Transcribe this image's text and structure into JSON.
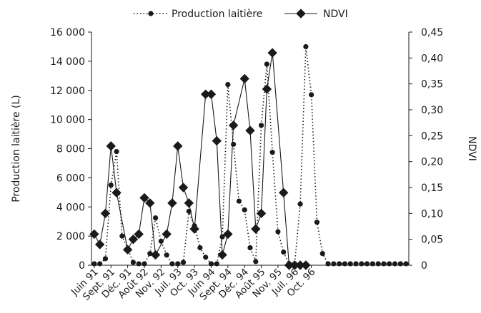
{
  "chart_data": {
    "type": "line",
    "xlabel": "",
    "ylabel": "Production laitière (L)",
    "y2label": "NDVI",
    "ylim": [
      0,
      16000
    ],
    "y2lim": [
      0,
      0.45
    ],
    "grid": false,
    "legend_position": "top",
    "x_tick_labels": [
      "Juin 91",
      "Sept. 91",
      "Déc. 91",
      "Août 92",
      "Nov. 92",
      "Juil. 93",
      "Oct. 93",
      "Juin 94",
      "Sept. 94",
      "Déc. 94",
      "Août 95",
      "Nov. 95",
      "Juil. 96",
      "Oct. 96"
    ],
    "y_tick_labels": [
      "0",
      "2 000",
      "4 000",
      "6 000",
      "8 000",
      "10 000",
      "12 000",
      "14 000",
      "16 000"
    ],
    "y2_tick_labels": [
      "0",
      "0,05",
      "0,10",
      "0,15",
      "0,20",
      "0,25",
      "0,30",
      "0,35",
      "0,40",
      "0,45"
    ],
    "series": [
      {
        "name": "Production laitière",
        "axis": "left",
        "color": "#1a1a1a",
        "line_style": "dotted",
        "marker": "circle",
        "x": [
          1,
          2,
          3,
          4,
          5,
          6,
          7,
          8,
          9,
          10,
          11,
          12,
          13,
          14,
          15,
          16,
          17,
          18,
          19,
          20,
          21,
          22,
          23,
          24,
          25,
          26,
          27,
          28,
          29,
          30,
          31,
          32,
          33,
          34,
          35,
          36,
          37,
          38,
          39,
          40,
          41,
          42,
          43,
          44,
          45,
          46,
          47,
          48,
          49,
          50,
          51,
          52,
          53,
          54,
          55,
          56,
          57
        ],
        "values": [
          100,
          100,
          450,
          5500,
          7800,
          2000,
          1150,
          200,
          100,
          100,
          800,
          3250,
          1650,
          700,
          100,
          100,
          200,
          3700,
          2700,
          1200,
          550,
          100,
          100,
          1950,
          12400,
          8300,
          4400,
          3800,
          1200,
          250,
          9600,
          13800,
          7750,
          2300,
          900,
          100,
          100,
          4200,
          15000,
          11700,
          2950,
          800,
          100,
          100,
          100,
          100,
          100,
          100,
          100,
          100,
          100,
          100,
          100,
          100,
          100,
          100,
          100
        ]
      },
      {
        "name": "NDVI",
        "axis": "right",
        "color": "#1a1a1a",
        "line_style": "solid",
        "marker": "diamond",
        "x": [
          1,
          2,
          3,
          4,
          5,
          7,
          8,
          9,
          10,
          11,
          12,
          14,
          15,
          16,
          17,
          18,
          19,
          21,
          22,
          23,
          24,
          25,
          26,
          28,
          29,
          30,
          31,
          32,
          33,
          35,
          36,
          37,
          38,
          39
        ],
        "values": [
          0.06,
          0.04,
          0.1,
          0.23,
          0.14,
          0.03,
          0.05,
          0.06,
          0.13,
          0.12,
          0.02,
          0.06,
          0.12,
          0.23,
          0.15,
          0.12,
          0.07,
          0.33,
          0.33,
          0.24,
          0.02,
          0.06,
          0.27,
          0.36,
          0.26,
          0.07,
          0.1,
          0.34,
          0.41,
          0.14,
          0.0,
          0.0,
          0.0,
          0.0
        ]
      }
    ]
  }
}
